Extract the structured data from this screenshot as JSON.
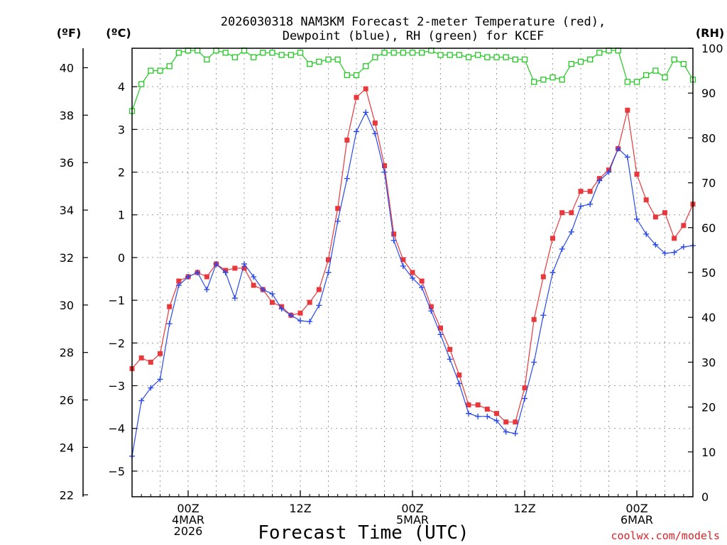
{
  "chart_data": {
    "type": "line",
    "title_line1": "2026030318 NAM3KM Forecast 2-meter Temperature (red),",
    "title_line2": "Dewpoint (blue), RH (green) for KCEF",
    "xlabel": "Forecast Time (UTC)",
    "credit": "coolwx.com/models",
    "axis_labels": {
      "fahrenheit": "(ºF)",
      "celsius": "(ºC)",
      "rh": "(RH)"
    },
    "x_hours_range": [
      0,
      60
    ],
    "x_ticks": [
      {
        "hour": 6,
        "line1": "00Z",
        "line2": "4MAR",
        "line3": "2026"
      },
      {
        "hour": 18,
        "line1": "12Z",
        "line2": "",
        "line3": ""
      },
      {
        "hour": 30,
        "line1": "00Z",
        "line2": "5MAR",
        "line3": ""
      },
      {
        "hour": 42,
        "line1": "12Z",
        "line2": "",
        "line3": ""
      },
      {
        "hour": 54,
        "line1": "00Z",
        "line2": "6MAR",
        "line3": ""
      }
    ],
    "celsius_range": [
      -5.6,
      4.9
    ],
    "celsius_ticks": [
      "−5",
      "−4",
      "−3",
      "−2",
      "−1",
      "0",
      "1",
      "2",
      "3",
      "4"
    ],
    "fahrenheit_ticks": [
      "22",
      "24",
      "26",
      "28",
      "30",
      "32",
      "34",
      "36",
      "38",
      "40"
    ],
    "rh_range": [
      0,
      100
    ],
    "rh_ticks": [
      "0",
      "10",
      "20",
      "30",
      "40",
      "50",
      "60",
      "70",
      "80",
      "90",
      "100"
    ],
    "series": [
      {
        "name": "Temperature (°C)",
        "color": "#e8383c",
        "marker": "filled-square",
        "x_hours": [
          0,
          1,
          2,
          3,
          4,
          5,
          6,
          7,
          8,
          9,
          10,
          11,
          12,
          13,
          14,
          15,
          16,
          17,
          18,
          19,
          20,
          21,
          22,
          23,
          24,
          25,
          26,
          27,
          28,
          29,
          30,
          31,
          32,
          33,
          34,
          35,
          36,
          37,
          38,
          39,
          40,
          41,
          42,
          43,
          44,
          45,
          46,
          47,
          48,
          49,
          50,
          51,
          52,
          53,
          54,
          55,
          56,
          57,
          58,
          59,
          60
        ],
        "values": [
          -2.6,
          -2.35,
          -2.45,
          -2.25,
          -1.15,
          -0.55,
          -0.45,
          -0.35,
          -0.45,
          -0.15,
          -0.3,
          -0.25,
          -0.25,
          -0.65,
          -0.75,
          -1.05,
          -1.15,
          -1.35,
          -1.3,
          -1.05,
          -0.75,
          -0.05,
          1.15,
          2.75,
          3.75,
          3.95,
          3.15,
          2.15,
          0.55,
          -0.05,
          -0.35,
          -0.55,
          -1.15,
          -1.65,
          -2.15,
          -2.75,
          -3.45,
          -3.45,
          -3.55,
          -3.65,
          -3.85,
          -3.85,
          -3.05,
          -1.45,
          -0.45,
          0.45,
          1.05,
          1.05,
          1.55,
          1.55,
          1.85,
          2.05,
          2.55,
          3.45,
          1.95,
          1.35,
          0.95,
          1.05,
          0.45,
          0.75,
          1.25
        ]
      },
      {
        "name": "Dewpoint (°C)",
        "color": "#2b49e8",
        "marker": "plus",
        "x_hours": [
          0,
          1,
          2,
          3,
          4,
          5,
          6,
          7,
          8,
          9,
          10,
          11,
          12,
          13,
          14,
          15,
          16,
          17,
          18,
          19,
          20,
          21,
          22,
          23,
          24,
          25,
          26,
          27,
          28,
          29,
          30,
          31,
          32,
          33,
          34,
          35,
          36,
          37,
          38,
          39,
          40,
          41,
          42,
          43,
          44,
          45,
          46,
          47,
          48,
          49,
          50,
          51,
          52,
          53,
          54,
          55,
          56,
          57,
          58,
          59,
          60
        ],
        "values": [
          -4.65,
          -3.35,
          -3.05,
          -2.85,
          -1.55,
          -0.65,
          -0.45,
          -0.35,
          -0.75,
          -0.15,
          -0.35,
          -0.95,
          -0.15,
          -0.45,
          -0.75,
          -0.85,
          -1.2,
          -1.35,
          -1.48,
          -1.5,
          -1.12,
          -0.35,
          0.85,
          1.85,
          2.95,
          3.4,
          2.9,
          2.0,
          0.4,
          -0.2,
          -0.48,
          -0.7,
          -1.25,
          -1.8,
          -2.38,
          -2.95,
          -3.65,
          -3.72,
          -3.72,
          -3.82,
          -4.08,
          -4.12,
          -3.3,
          -2.45,
          -1.35,
          -0.35,
          0.2,
          0.6,
          1.2,
          1.25,
          1.8,
          2.0,
          2.55,
          2.35,
          0.9,
          0.55,
          0.3,
          0.1,
          0.12,
          0.25,
          0.28
        ]
      },
      {
        "name": "RH (%)",
        "color": "#22c922",
        "marker": "open-square",
        "x_hours": [
          0,
          1,
          2,
          3,
          4,
          5,
          6,
          7,
          8,
          9,
          10,
          11,
          12,
          13,
          14,
          15,
          16,
          17,
          18,
          19,
          20,
          21,
          22,
          23,
          24,
          25,
          26,
          27,
          28,
          29,
          30,
          31,
          32,
          33,
          34,
          35,
          36,
          37,
          38,
          39,
          40,
          41,
          42,
          43,
          44,
          45,
          46,
          47,
          48,
          49,
          50,
          51,
          52,
          53,
          54,
          55,
          56,
          57,
          58,
          59,
          60
        ],
        "values": [
          86,
          92,
          95,
          95,
          96,
          99,
          99.5,
          99.5,
          97.5,
          99.5,
          99,
          98,
          99.5,
          98,
          99,
          99,
          98.5,
          98.5,
          99,
          96.5,
          97,
          97.5,
          97.5,
          94,
          94,
          96,
          98,
          99,
          99,
          99,
          99,
          99,
          99.5,
          98.5,
          98.5,
          98.5,
          98,
          98.5,
          98,
          98,
          98,
          97.5,
          97.5,
          92.5,
          93,
          93.5,
          93,
          96.5,
          97,
          97.5,
          99,
          99.5,
          99.5,
          92.5,
          92.5,
          94,
          95,
          93.5,
          97.5,
          96.5,
          93
        ]
      }
    ]
  }
}
